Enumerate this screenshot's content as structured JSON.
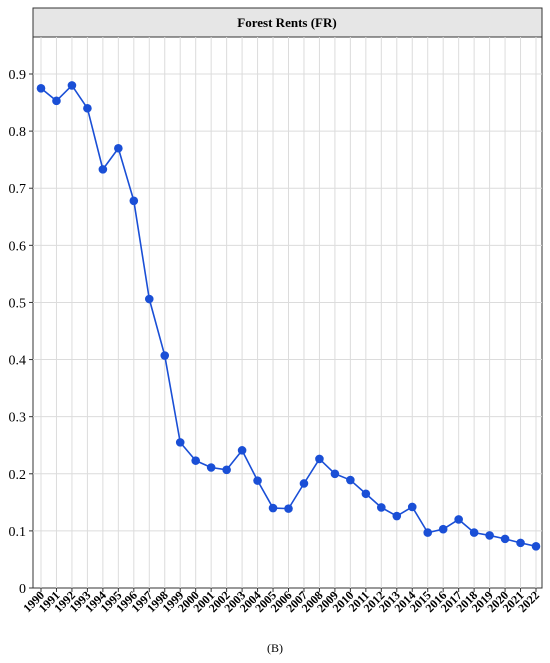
{
  "caption": "(B)",
  "chart_data": {
    "type": "line",
    "title": "Forest Rents (FR)",
    "xlabel": "",
    "ylabel": "",
    "x": [
      "1990",
      "1991",
      "1992",
      "1993",
      "1994",
      "1995",
      "1996",
      "1997",
      "1998",
      "1999",
      "2000",
      "2001",
      "2002",
      "2003",
      "2004",
      "2005",
      "2006",
      "2007",
      "2008",
      "2009",
      "2010",
      "2011",
      "2012",
      "2013",
      "2014",
      "2015",
      "2016",
      "2017",
      "2018",
      "2019",
      "2020",
      "2021",
      "2022"
    ],
    "series": [
      {
        "values": [
          0.875,
          0.853,
          0.88,
          0.84,
          0.733,
          0.77,
          0.678,
          0.506,
          0.407,
          0.255,
          0.223,
          0.211,
          0.207,
          0.241,
          0.188,
          0.14,
          0.139,
          0.183,
          0.226,
          0.2,
          0.189,
          0.165,
          0.141,
          0.126,
          0.142,
          0.097,
          0.103,
          0.12,
          0.097,
          0.092,
          0.086,
          0.079,
          0.073
        ]
      }
    ],
    "yticks": [
      "0",
      "0.1",
      "0.2",
      "0.3",
      "0.4",
      "0.5",
      "0.6",
      "0.7",
      "0.8",
      "0.9"
    ],
    "ylim": [
      0,
      0.97
    ],
    "grid": true,
    "line_color": "#1a4fd6"
  }
}
